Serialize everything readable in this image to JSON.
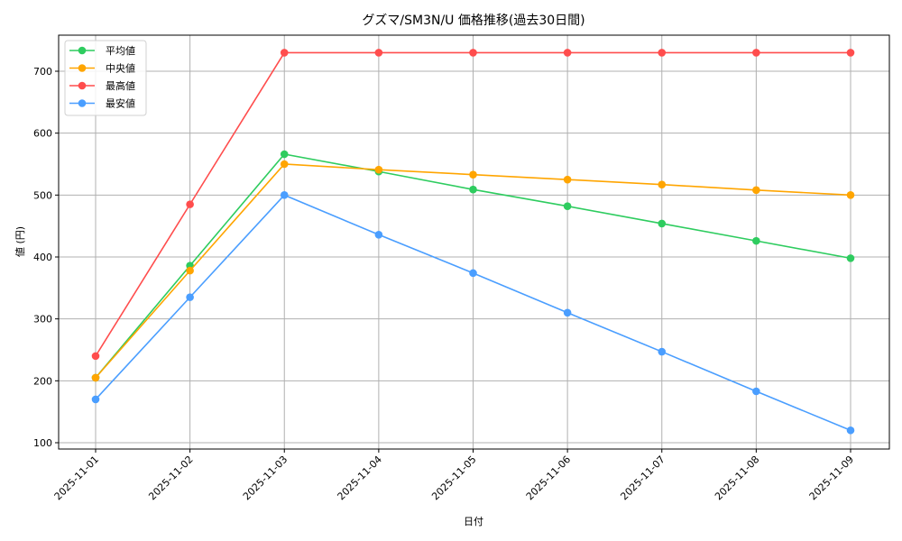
{
  "chart_data": {
    "type": "line",
    "title": "グズマ/SM3N/U 価格推移(過去30日間)",
    "xlabel": "日付",
    "ylabel": "値 (円)",
    "x": [
      "2025-11-01",
      "2025-11-02",
      "2025-11-03",
      "2025-11-04",
      "2025-11-05",
      "2025-11-06",
      "2025-11-07",
      "2025-11-08",
      "2025-11-09"
    ],
    "yticks": [
      100,
      200,
      300,
      400,
      500,
      600,
      700
    ],
    "ylim": [
      88,
      760
    ],
    "grid": true,
    "legend_position": "upper left",
    "series": [
      {
        "name": "平均値",
        "color": "#2ecc5f",
        "values": [
          205,
          386,
          566,
          538,
          509,
          482,
          454,
          426,
          398
        ]
      },
      {
        "name": "中央値",
        "color": "#ffa500",
        "values": [
          205,
          378,
          550,
          541,
          533,
          525,
          517,
          508,
          500
        ]
      },
      {
        "name": "最高値",
        "color": "#ff4d4d",
        "values": [
          240,
          485,
          730,
          730,
          730,
          730,
          730,
          730,
          730
        ]
      },
      {
        "name": "最安値",
        "color": "#4a9eff",
        "values": [
          170,
          335,
          500,
          436,
          374,
          310,
          247,
          183,
          120
        ]
      }
    ]
  }
}
